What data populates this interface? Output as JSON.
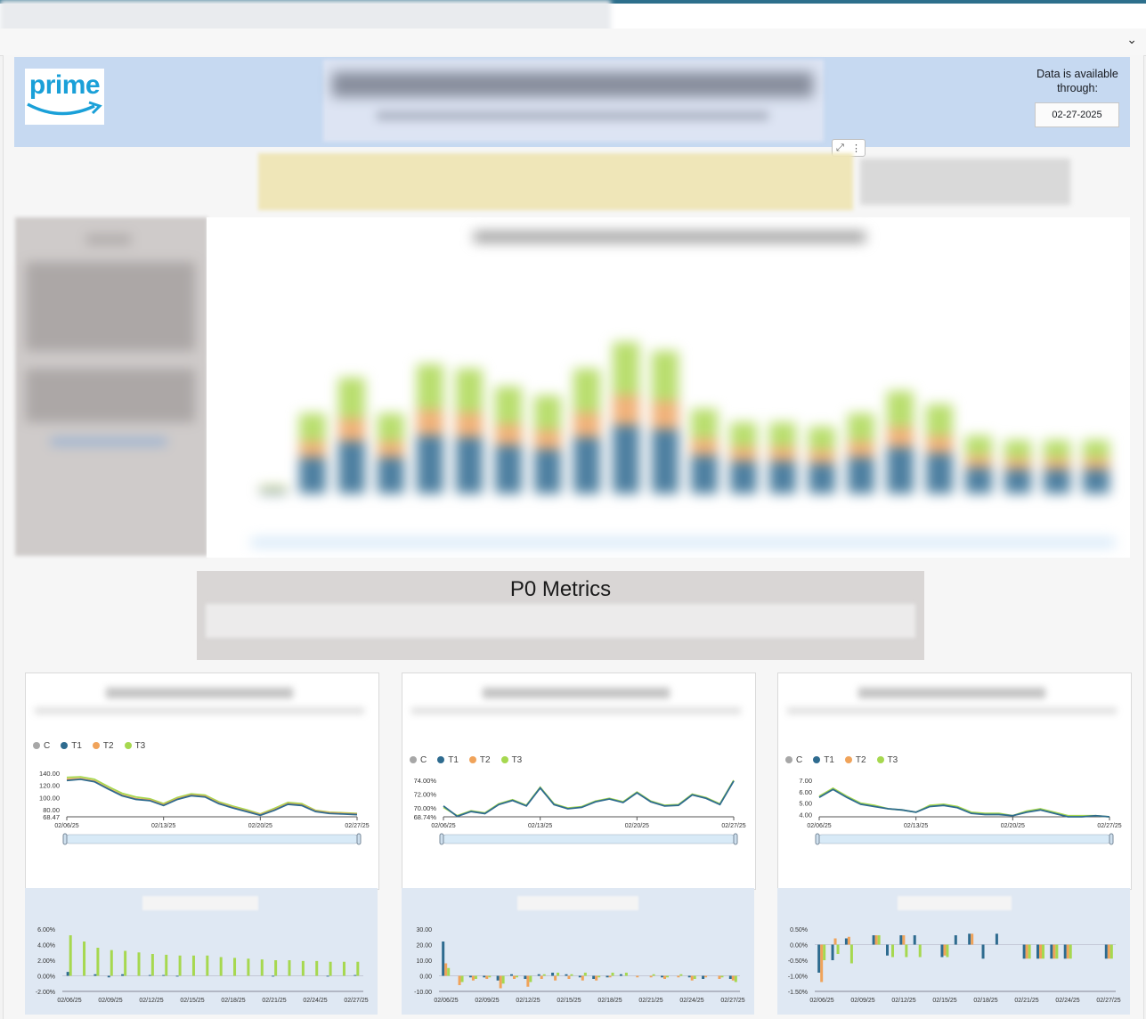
{
  "header": {
    "logo_text": "prime",
    "availability_label": "Data is available through:",
    "availability_date": "02-27-2025"
  },
  "p0": {
    "title": "P0 Metrics"
  },
  "legend": [
    {
      "name": "C",
      "color": "#a7a7a7"
    },
    {
      "name": "T1",
      "color": "#2e6b8f"
    },
    {
      "name": "T2",
      "color": "#f0a35a"
    },
    {
      "name": "T3",
      "color": "#a6d84f"
    }
  ],
  "chart_data": [
    {
      "type": "line",
      "ylim": [
        68.47,
        140
      ],
      "yticks": [
        "140.00",
        "120.00",
        "100.00",
        "80.00",
        "68.47"
      ],
      "xticks": [
        "02/06/25",
        "02/13/25",
        "02/20/25",
        "02/27/25"
      ],
      "series": [
        {
          "name": "T3",
          "values": [
            133,
            134,
            130,
            118,
            107,
            101,
            98,
            90,
            100,
            106,
            104,
            93,
            86,
            80,
            73,
            82,
            92,
            90,
            79,
            76,
            75,
            74
          ]
        },
        {
          "name": "T2",
          "values": [
            130,
            131,
            127,
            115,
            104,
            98,
            96,
            88,
            98,
            104,
            102,
            91,
            84,
            78,
            72,
            80,
            90,
            88,
            78,
            75,
            74,
            73
          ]
        },
        {
          "name": "T1",
          "values": [
            128,
            130,
            126,
            114,
            103,
            97,
            95,
            87,
            97,
            103,
            101,
            90,
            83,
            77,
            71,
            79,
            89,
            87,
            77,
            74,
            73,
            72
          ]
        }
      ]
    },
    {
      "type": "line",
      "ylim": [
        68.74,
        74
      ],
      "yticks": [
        "74.00%",
        "72.00%",
        "70.00%",
        "68.74%"
      ],
      "xticks": [
        "02/06/25",
        "02/13/25",
        "02/20/25",
        "02/27/25"
      ],
      "series": [
        {
          "name": "T3",
          "values": [
            70.1,
            68.9,
            69.6,
            69.3,
            70.6,
            71.2,
            70.4,
            73.0,
            70.6,
            70.0,
            70.2,
            71.0,
            71.4,
            70.9,
            72.3,
            71.0,
            70.4,
            70.5,
            72.0,
            71.5,
            70.6,
            74.0
          ]
        },
        {
          "name": "T1",
          "values": [
            70.3,
            68.8,
            69.5,
            69.2,
            70.5,
            71.1,
            70.3,
            72.9,
            70.5,
            69.9,
            70.1,
            70.9,
            71.3,
            70.8,
            72.2,
            70.9,
            70.3,
            70.4,
            71.9,
            71.4,
            70.5,
            73.9
          ]
        }
      ]
    },
    {
      "type": "line",
      "ylim": [
        3.8,
        7
      ],
      "yticks": [
        "7.00",
        "6.00",
        "5.00",
        "4.00"
      ],
      "xticks": [
        "02/06/25",
        "02/13/25",
        "02/20/25",
        "02/27/25"
      ],
      "series": [
        {
          "name": "T3",
          "values": [
            5.6,
            6.3,
            5.6,
            5.0,
            4.8,
            4.5,
            4.4,
            4.2,
            4.8,
            4.9,
            4.7,
            4.2,
            4.1,
            4.1,
            3.9,
            4.3,
            4.5,
            4.2,
            3.9,
            3.9,
            3.9,
            3.8
          ]
        },
        {
          "name": "T1",
          "values": [
            5.5,
            6.2,
            5.5,
            4.9,
            4.7,
            4.5,
            4.4,
            4.2,
            4.7,
            4.8,
            4.6,
            4.1,
            4.0,
            4.0,
            3.9,
            4.2,
            4.4,
            4.1,
            3.8,
            3.8,
            3.9,
            3.8
          ]
        }
      ]
    },
    {
      "type": "bar",
      "ylim": [
        -2,
        6
      ],
      "yticks": [
        "6.00%",
        "4.00%",
        "2.00%",
        "0.00%",
        "-2.00%"
      ],
      "xticks": [
        "02/06/25",
        "02/09/25",
        "02/12/25",
        "02/15/25",
        "02/18/25",
        "02/21/25",
        "02/24/25",
        "02/27/25"
      ],
      "series": [
        {
          "name": "T1",
          "values": [
            0.5,
            0,
            0.2,
            -0.2,
            0.2,
            0,
            0.1,
            0.1,
            -0.1,
            0,
            0,
            0,
            0,
            0,
            0,
            -0.1,
            0,
            0,
            0,
            -0.1,
            0,
            0.1
          ]
        },
        {
          "name": "T3",
          "values": [
            5.2,
            4.4,
            3.6,
            3.3,
            3.2,
            3.0,
            2.8,
            2.7,
            2.6,
            2.6,
            2.6,
            2.4,
            2.3,
            2.2,
            2.1,
            2.0,
            2.0,
            1.9,
            1.9,
            1.8,
            1.8,
            1.8
          ]
        }
      ]
    },
    {
      "type": "bar",
      "ylim": [
        -10,
        30
      ],
      "yticks": [
        "30.00",
        "20.00",
        "10.00",
        "0.00",
        "-10.00"
      ],
      "xticks": [
        "02/06/25",
        "02/09/25",
        "02/12/25",
        "02/15/25",
        "02/18/25",
        "02/21/25",
        "02/24/25",
        "02/27/25"
      ],
      "series": [
        {
          "name": "T1",
          "values": [
            22,
            0,
            -1,
            -1,
            -3,
            1,
            -2,
            1,
            2,
            1,
            -1,
            -2,
            -1,
            1,
            0,
            0,
            -1,
            0,
            -1,
            -2,
            0,
            -2
          ]
        },
        {
          "name": "T2",
          "values": [
            8,
            -6,
            -3,
            -2,
            -8,
            -2,
            -7,
            -2,
            -3,
            -2,
            -3,
            -3,
            -1,
            0,
            -1,
            -1,
            -2,
            -1,
            -3,
            -1,
            -2,
            -3
          ]
        },
        {
          "name": "T3",
          "values": [
            5,
            -4,
            -2,
            -1,
            -5,
            -1,
            -4,
            1,
            2,
            1,
            2,
            -1,
            2,
            2,
            0,
            1,
            -1,
            1,
            -2,
            0,
            -1,
            -4
          ]
        }
      ]
    },
    {
      "type": "bar",
      "ylim": [
        -1.5,
        0.5
      ],
      "yticks": [
        "0.50%",
        "0.00%",
        "-0.50%",
        "-1.00%",
        "-1.50%"
      ],
      "xticks": [
        "02/06/25",
        "02/09/25",
        "02/12/25",
        "02/15/25",
        "02/18/25",
        "02/21/25",
        "02/24/25",
        "02/27/25"
      ],
      "series": [
        {
          "name": "T1",
          "values": [
            -0.9,
            -0.5,
            0.2,
            0,
            0.3,
            -0.35,
            0.3,
            0.3,
            0,
            -0.4,
            0.3,
            0.35,
            -0.45,
            0.35,
            0,
            -0.45,
            -0.45,
            -0.45,
            -0.45,
            0,
            0,
            -0.45
          ]
        },
        {
          "name": "T2",
          "values": [
            -1.2,
            0.2,
            0.25,
            0,
            0.3,
            0,
            0.3,
            0,
            0,
            -0.35,
            0,
            0.35,
            0,
            0,
            0,
            -0.45,
            -0.45,
            -0.45,
            -0.45,
            0,
            0,
            -0.45
          ]
        },
        {
          "name": "T3",
          "values": [
            -0.5,
            -0.3,
            -0.6,
            0,
            0.3,
            -0.4,
            -0.4,
            -0.4,
            0,
            -0.4,
            0,
            0,
            0,
            0,
            0,
            -0.45,
            -0.45,
            -0.45,
            -0.45,
            0,
            0,
            -0.45
          ]
        }
      ]
    }
  ]
}
